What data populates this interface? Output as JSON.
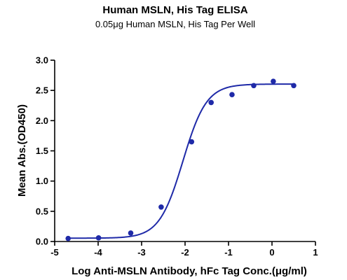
{
  "chart_data": {
    "type": "scatter",
    "title": "Human MSLN, His Tag ELISA",
    "subtitle": "0.05μg Human MSLN, His Tag Per Well",
    "xlabel": "Log Anti-MSLN Antibody, hFc Tag Conc.(μg/ml)",
    "ylabel": "Mean Abs.(OD450)",
    "xlim": [
      -5,
      1
    ],
    "ylim": [
      0,
      3
    ],
    "x_ticks": [
      -5,
      -4,
      -3,
      -2,
      -1,
      0,
      1
    ],
    "y_ticks": [
      0.0,
      0.5,
      1.0,
      1.5,
      2.0,
      2.5,
      3.0
    ],
    "x_tick_labels": [
      "-5",
      "-4",
      "-3",
      "-2",
      "-1",
      "0",
      "1"
    ],
    "y_tick_labels": [
      "0.0",
      "0.5",
      "1.0",
      "1.5",
      "2.0",
      "2.5",
      "3.0"
    ],
    "grid": false,
    "color": "#1f2aa8",
    "series": [
      {
        "points": [
          {
            "x": -4.69,
            "y": 0.05
          },
          {
            "x": -3.99,
            "y": 0.06
          },
          {
            "x": -3.25,
            "y": 0.14
          },
          {
            "x": -2.55,
            "y": 0.57
          },
          {
            "x": -1.85,
            "y": 1.65
          },
          {
            "x": -1.4,
            "y": 2.3
          },
          {
            "x": -0.92,
            "y": 2.43
          },
          {
            "x": -0.42,
            "y": 2.58
          },
          {
            "x": 0.03,
            "y": 2.65
          },
          {
            "x": 0.5,
            "y": 2.58
          }
        ],
        "fit": {
          "bottom": 0.055,
          "top": 2.605,
          "log_ec50": -2.05,
          "hill": 1.6
        }
      }
    ]
  }
}
